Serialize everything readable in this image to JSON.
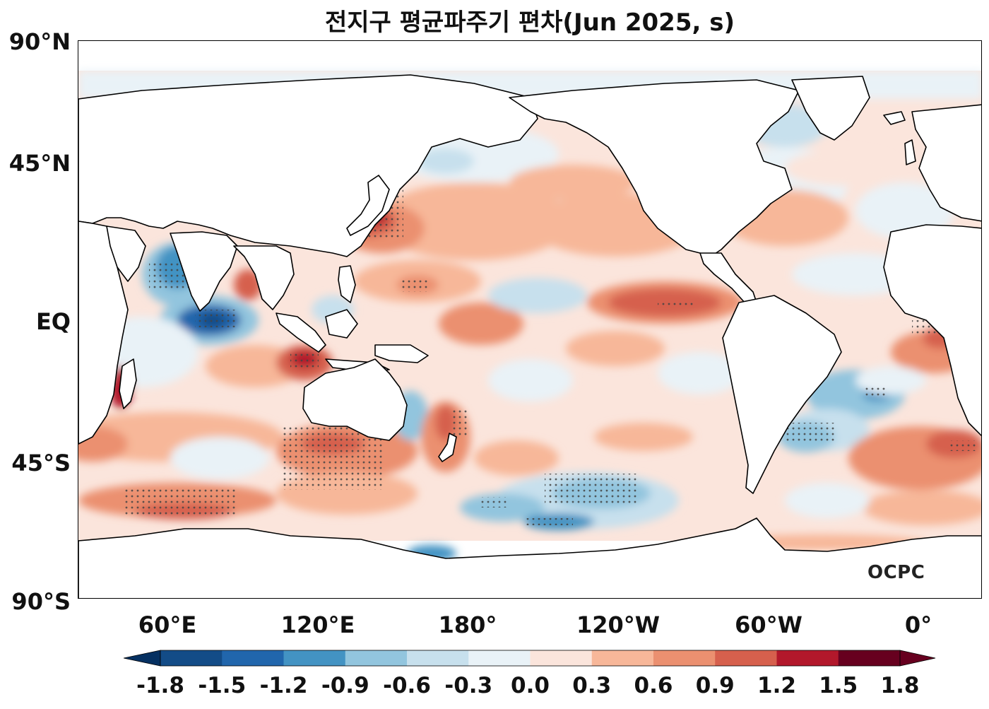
{
  "title": "전지구 평균파주기 편차(Jun 2025, s)",
  "logo": "OCPC",
  "lat_labels": [
    "90°N",
    "45°N",
    "EQ",
    "45°S",
    "90°S"
  ],
  "lon_labels": [
    "60°E",
    "120°E",
    "180°",
    "120°W",
    "60°W",
    "0°"
  ],
  "colorbar": {
    "ticks": [
      "-1.8",
      "-1.5",
      "-1.2",
      "-0.9",
      "-0.6",
      "-0.3",
      "0.0",
      "0.3",
      "0.6",
      "0.9",
      "1.2",
      "1.5",
      "1.8"
    ],
    "colors": [
      "#053061",
      "#134c87",
      "#2166ac",
      "#4393c3",
      "#92c5de",
      "#c7e0ed",
      "#e9f2f7",
      "#fbe5dc",
      "#f7b799",
      "#eb9070",
      "#d6604d",
      "#b2182b",
      "#67001f"
    ],
    "extend": "both"
  }
}
